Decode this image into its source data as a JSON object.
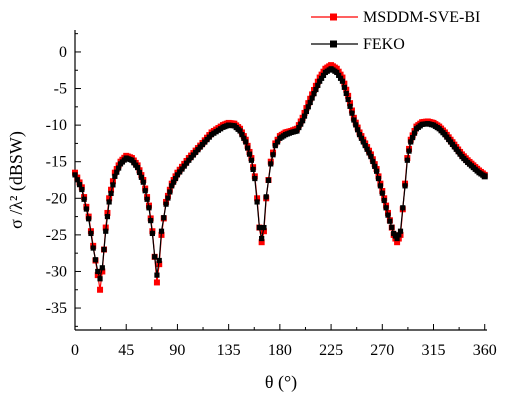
{
  "chart_data": {
    "type": "line",
    "xlabel": "θ (°)",
    "ylabel": "σ /λ² (dBSW)",
    "xlim": [
      0,
      362
    ],
    "ylim": [
      -38,
      3
    ],
    "xticks": [
      0,
      45,
      90,
      135,
      180,
      225,
      270,
      315,
      360
    ],
    "yticks": [
      0,
      -5,
      -10,
      -15,
      -20,
      -25,
      -30,
      -35
    ],
    "legend_position": "top-right",
    "colors": {
      "series1": "#ff0000",
      "series2": "#000000"
    },
    "series": [
      {
        "name": "MSDDM-SVE-BI",
        "marker": "square",
        "x": [
          0,
          6,
          12,
          16,
          20,
          22,
          24,
          27,
          30,
          35,
          40,
          45,
          50,
          55,
          60,
          65,
          68,
          70,
          72,
          74,
          76,
          80,
          85,
          90,
          100,
          110,
          120,
          130,
          135,
          140,
          145,
          150,
          155,
          158,
          160,
          162,
          164,
          166,
          168,
          172,
          176,
          180,
          185,
          190,
          195,
          200,
          205,
          210,
          215,
          220,
          225,
          230,
          235,
          240,
          245,
          250,
          255,
          260,
          265,
          270,
          275,
          280,
          283,
          286,
          288,
          290,
          292,
          295,
          300,
          305,
          310,
          315,
          320,
          325,
          330,
          335,
          340,
          345,
          350,
          355,
          360
        ],
        "values": [
          -16.5,
          -18.5,
          -22.5,
          -26.5,
          -30.5,
          -32.5,
          -30.0,
          -24.0,
          -20.0,
          -16.5,
          -15.0,
          -14.2,
          -14.5,
          -15.5,
          -17.5,
          -21.0,
          -24.5,
          -28.0,
          -31.5,
          -29.0,
          -25.0,
          -20.5,
          -18.0,
          -16.5,
          -14.5,
          -12.8,
          -11.0,
          -10.0,
          -9.7,
          -9.8,
          -10.5,
          -12.0,
          -14.5,
          -17.0,
          -20.0,
          -24.0,
          -26.0,
          -24.5,
          -20.0,
          -15.0,
          -12.5,
          -11.5,
          -11.0,
          -10.8,
          -10.5,
          -9.0,
          -7.0,
          -5.2,
          -3.5,
          -2.3,
          -1.8,
          -2.3,
          -3.5,
          -6.0,
          -9.0,
          -11.0,
          -12.5,
          -14.0,
          -16.0,
          -19.0,
          -22.0,
          -25.0,
          -26.0,
          -25.0,
          -21.5,
          -18.0,
          -14.5,
          -12.0,
          -10.2,
          -9.6,
          -9.5,
          -9.7,
          -10.2,
          -11.0,
          -12.0,
          -13.0,
          -14.0,
          -14.8,
          -15.5,
          -16.2,
          -16.8
        ]
      },
      {
        "name": "FEKO",
        "marker": "square",
        "x": [
          0,
          6,
          12,
          16,
          20,
          22,
          24,
          27,
          30,
          35,
          40,
          45,
          50,
          55,
          60,
          65,
          68,
          70,
          72,
          74,
          76,
          80,
          85,
          90,
          100,
          110,
          120,
          130,
          135,
          140,
          145,
          150,
          155,
          158,
          160,
          162,
          164,
          166,
          168,
          172,
          176,
          180,
          185,
          190,
          195,
          200,
          205,
          210,
          215,
          220,
          225,
          230,
          235,
          240,
          245,
          250,
          255,
          260,
          265,
          270,
          275,
          280,
          283,
          286,
          288,
          290,
          292,
          295,
          300,
          305,
          310,
          315,
          320,
          325,
          330,
          335,
          340,
          345,
          350,
          355,
          360
        ],
        "values": [
          -16.8,
          -18.8,
          -22.8,
          -26.8,
          -30.0,
          -31.0,
          -29.5,
          -24.5,
          -20.5,
          -17.0,
          -15.3,
          -14.5,
          -14.8,
          -15.8,
          -17.8,
          -21.3,
          -24.8,
          -28.0,
          -30.5,
          -28.5,
          -24.5,
          -20.8,
          -18.3,
          -16.8,
          -14.8,
          -13.0,
          -11.3,
          -10.3,
          -10.0,
          -10.1,
          -10.8,
          -12.3,
          -14.8,
          -17.3,
          -20.5,
          -24.0,
          -25.5,
          -24.0,
          -19.8,
          -15.3,
          -12.8,
          -11.8,
          -11.3,
          -11.0,
          -10.8,
          -9.4,
          -7.5,
          -5.7,
          -4.0,
          -2.8,
          -2.3,
          -2.8,
          -4.0,
          -6.5,
          -9.3,
          -11.3,
          -12.8,
          -14.3,
          -16.3,
          -19.3,
          -22.3,
          -24.8,
          -25.5,
          -24.5,
          -21.3,
          -18.3,
          -14.8,
          -12.3,
          -10.5,
          -9.9,
          -9.8,
          -10.0,
          -10.5,
          -11.3,
          -12.3,
          -13.3,
          -14.3,
          -15.1,
          -15.8,
          -16.5,
          -17.0
        ]
      }
    ]
  }
}
